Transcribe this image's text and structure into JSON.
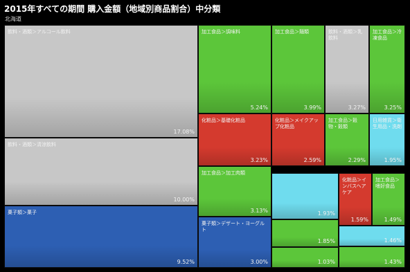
{
  "title": "2015年すべての期間 購入金額（地域別商品割合）中分類",
  "subtitle": "北海道",
  "colors": {
    "gray": "#c7c7c7",
    "green": "#5cc63a",
    "red": "#d43a2e",
    "blue": "#2d5fb3",
    "cyan": "#6fdcee",
    "background": "#000000"
  },
  "chart_data": {
    "type": "treemap",
    "title": "2015年すべての期間 購入金額（地域別商品割合）中分類",
    "subtitle": "北海道",
    "tiles": [
      {
        "label": "飲料・酒類＞アルコール飲料",
        "value": "17.08%",
        "color": "gray"
      },
      {
        "label": "飲料・酒類＞清涼飲料",
        "value": "10.00%",
        "color": "gray"
      },
      {
        "label": "菓子類＞菓子",
        "value": "9.52%",
        "color": "blue"
      },
      {
        "label": "加工食品＞調味料",
        "value": "5.24%",
        "color": "green"
      },
      {
        "label": "加工食品＞麺類",
        "value": "3.99%",
        "color": "green"
      },
      {
        "label": "飲料・酒類＞乳飲料",
        "value": "3.27%",
        "color": "gray"
      },
      {
        "label": "加工食品＞冷凍食品",
        "value": "3.25%",
        "color": "green"
      },
      {
        "label": "化粧品＞基礎化粧品",
        "value": "3.23%",
        "color": "red"
      },
      {
        "label": "化粧品＞メイクアップ化粧品",
        "value": "2.59%",
        "color": "red"
      },
      {
        "label": "加工食品＞穀物・穀類",
        "value": "2.29%",
        "color": "green"
      },
      {
        "label": "日用雑貨＞衛生用品・洗剤",
        "value": "1.95%",
        "color": "cyan"
      },
      {
        "label": "加工食品＞加工肉類",
        "value": "3.13%",
        "color": "green"
      },
      {
        "label": "",
        "value": "1.93%",
        "color": "cyan"
      },
      {
        "label": "化粧品＞インバスヘアケア",
        "value": "1.59%",
        "color": "red"
      },
      {
        "label": "加工食品＞嗜好食品",
        "value": "1.49%",
        "color": "green"
      },
      {
        "label": "菓子類＞デザート・ヨーグルト",
        "value": "3.00%",
        "color": "blue"
      },
      {
        "label": "",
        "value": "1.85%",
        "color": "green"
      },
      {
        "label": "",
        "value": "1.46%",
        "color": "cyan"
      },
      {
        "label": "",
        "value": "1.03%",
        "color": "green"
      },
      {
        "label": "",
        "value": "1.43%",
        "color": "green"
      }
    ]
  }
}
